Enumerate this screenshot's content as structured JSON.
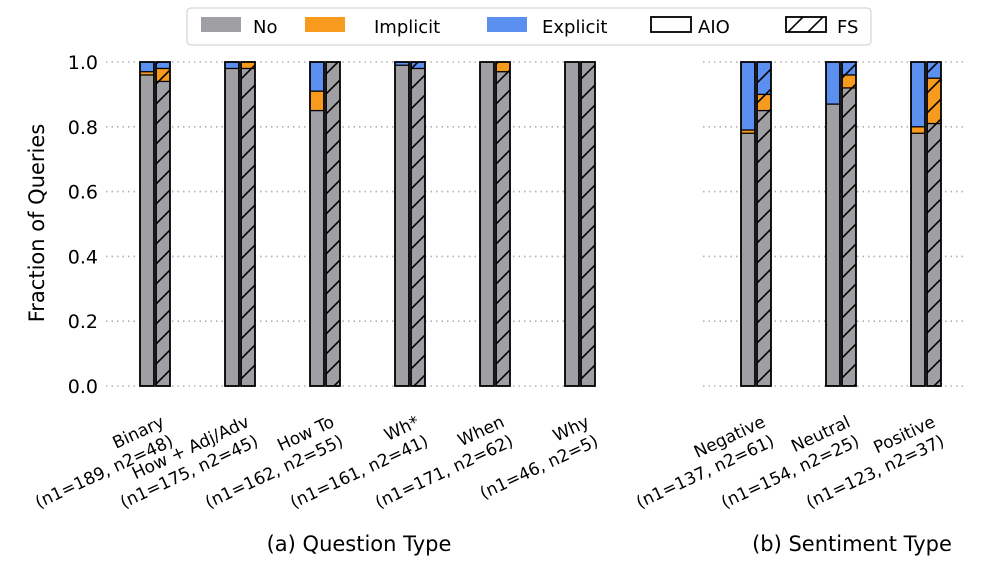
{
  "chart_data": {
    "type": "bar",
    "stacked": true,
    "ylabel": "Fraction of Queries",
    "ylim": [
      0,
      1.0
    ],
    "yticks": [
      "0.0",
      "0.2",
      "0.4",
      "0.6",
      "0.8",
      "1.0"
    ],
    "grid": "horizontal dotted",
    "legend": {
      "placement": "top",
      "entries": [
        {
          "label": "No",
          "kind": "color",
          "color": "#a0a0a4"
        },
        {
          "label": "Implicit",
          "kind": "color",
          "color": "#f79a1d"
        },
        {
          "label": "Explicit",
          "kind": "color",
          "color": "#5b8ff0"
        },
        {
          "label": "AIO",
          "kind": "hatch-none"
        },
        {
          "label": "FS",
          "kind": "hatch-diagonal"
        }
      ]
    },
    "stack_order": [
      "No",
      "Implicit",
      "Explicit"
    ],
    "colors": {
      "No": "#a0a0a4",
      "Implicit": "#f79a1d",
      "Explicit": "#5b8ff0"
    },
    "panels": [
      {
        "title": "(a) Question Type",
        "groups": [
          {
            "label1": "Binary",
            "label2": "(n1=189, n2=48)",
            "AIO": {
              "No": 0.96,
              "Implicit": 0.01,
              "Explicit": 0.03
            },
            "FS": {
              "No": 0.94,
              "Implicit": 0.04,
              "Explicit": 0.02
            }
          },
          {
            "label1": "How + Adj/Adv",
            "label2": "(n1=175, n2=45)",
            "AIO": {
              "No": 0.98,
              "Implicit": 0.0,
              "Explicit": 0.02
            },
            "FS": {
              "No": 0.98,
              "Implicit": 0.02,
              "Explicit": 0.0
            }
          },
          {
            "label1": "How To",
            "label2": "(n1=162, n2=55)",
            "AIO": {
              "No": 0.85,
              "Implicit": 0.06,
              "Explicit": 0.09
            },
            "FS": {
              "No": 1.0,
              "Implicit": 0.0,
              "Explicit": 0.0
            }
          },
          {
            "label1": "Wh*",
            "label2": "(n1=161, n2=41)",
            "AIO": {
              "No": 0.99,
              "Implicit": 0.0,
              "Explicit": 0.01
            },
            "FS": {
              "No": 0.98,
              "Implicit": 0.0,
              "Explicit": 0.02
            }
          },
          {
            "label1": "When",
            "label2": "(n1=171, n2=62)",
            "AIO": {
              "No": 1.0,
              "Implicit": 0.0,
              "Explicit": 0.0
            },
            "FS": {
              "No": 0.97,
              "Implicit": 0.03,
              "Explicit": 0.0
            }
          },
          {
            "label1": "Why",
            "label2": "(n1=46, n2=5)",
            "AIO": {
              "No": 1.0,
              "Implicit": 0.0,
              "Explicit": 0.0
            },
            "FS": {
              "No": 1.0,
              "Implicit": 0.0,
              "Explicit": 0.0
            }
          }
        ]
      },
      {
        "title": "(b) Sentiment Type",
        "groups": [
          {
            "label1": "Negative",
            "label2": "(n1=137, n2=61)",
            "AIO": {
              "No": 0.78,
              "Implicit": 0.01,
              "Explicit": 0.21
            },
            "FS": {
              "No": 0.85,
              "Implicit": 0.05,
              "Explicit": 0.1
            }
          },
          {
            "label1": "Neutral",
            "label2": "(n1=154, n2=25)",
            "AIO": {
              "No": 0.87,
              "Implicit": 0.0,
              "Explicit": 0.13
            },
            "FS": {
              "No": 0.92,
              "Implicit": 0.04,
              "Explicit": 0.04
            }
          },
          {
            "label1": "Positive",
            "label2": "(n1=123, n2=37)",
            "AIO": {
              "No": 0.78,
              "Implicit": 0.02,
              "Explicit": 0.2
            },
            "FS": {
              "No": 0.81,
              "Implicit": 0.14,
              "Explicit": 0.05
            }
          }
        ]
      }
    ]
  }
}
